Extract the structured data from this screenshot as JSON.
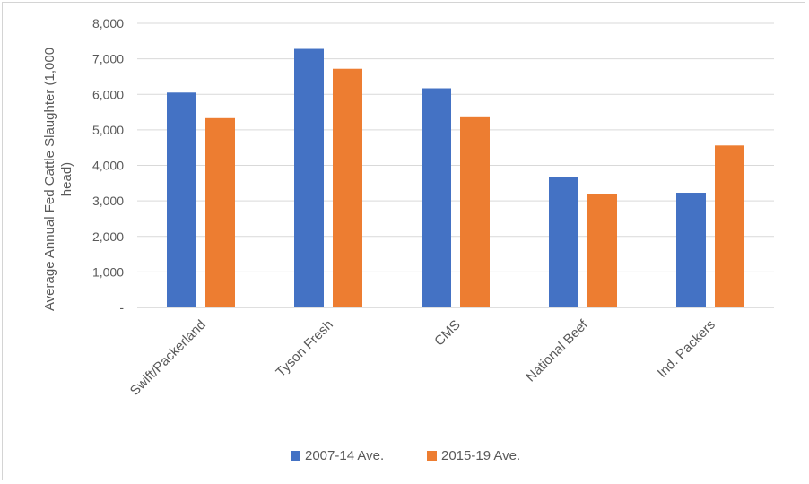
{
  "chart_data": {
    "type": "bar",
    "categories": [
      "Swift/Packerland",
      "Tyson Fresh",
      "CMS",
      "National Beef",
      "Ind. Packers"
    ],
    "series": [
      {
        "name": "2007-14 Ave.",
        "color": "#4472c4",
        "values": [
          6050,
          7280,
          6170,
          3660,
          3230
        ]
      },
      {
        "name": "2015-19 Ave.",
        "color": "#ed7d31",
        "values": [
          5330,
          6720,
          5380,
          3190,
          4560
        ]
      }
    ],
    "ylabel_lines": [
      "Average Annual  Fed Cattle Slaughter  (1,000",
      "head)"
    ],
    "ylim": [
      0,
      8000
    ],
    "yticks": [
      "-",
      "1,000",
      "2,000",
      "3,000",
      "4,000",
      "5,000",
      "6,000",
      "7,000",
      "8,000"
    ],
    "grid": true,
    "legend_position": "bottom"
  }
}
